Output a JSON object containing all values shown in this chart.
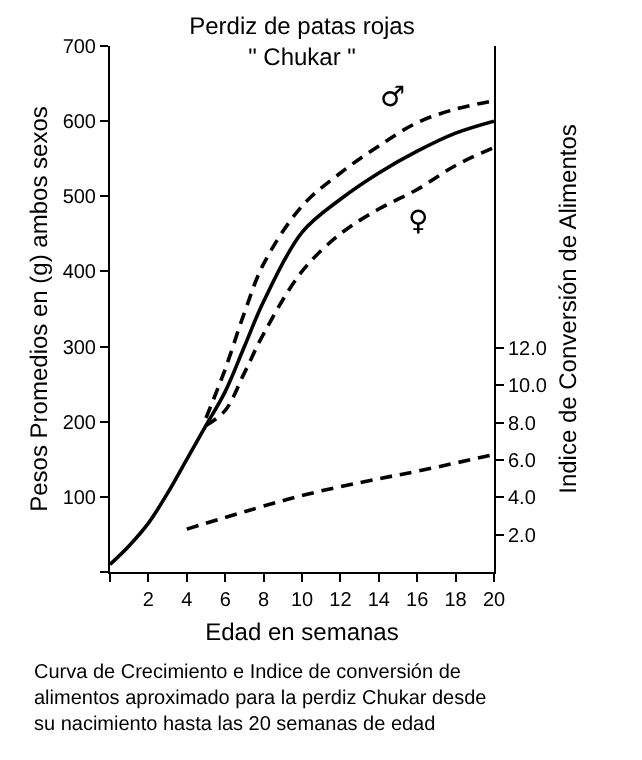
{
  "chart_data": {
    "type": "line",
    "title": "Perdiz de patas rojas\n\" Chukar \"",
    "xlabel": "Edad en semanas",
    "ylabel": "Pesos Promedios en (g) ambos sexos",
    "y2label": "Indice de Conversión de Alimentos",
    "series": [
      {
        "color": "#000000",
        "line_style": "solid",
        "x": [
          0,
          1,
          2,
          3,
          4,
          5,
          6,
          7,
          8,
          10,
          12,
          14,
          16,
          18,
          20
        ],
        "values": [
          10,
          35,
          65,
          105,
          150,
          195,
          240,
          300,
          360,
          452,
          496,
          531,
          560,
          584,
          600
        ]
      },
      {
        "color": "#000000",
        "line_style": "dashed",
        "x": [
          5,
          6,
          7,
          8,
          10,
          12,
          14,
          16,
          18,
          20
        ],
        "values": [
          205,
          270,
          345,
          410,
          487,
          531,
          567,
          598,
          616,
          627
        ]
      },
      {
        "color": "#000000",
        "line_style": "dashed",
        "x": [
          5,
          6,
          7,
          8,
          10,
          12,
          14,
          16,
          18,
          20
        ],
        "values": [
          195,
          215,
          265,
          317,
          400,
          450,
          483,
          509,
          541,
          565
        ]
      },
      {
        "color": "#000000",
        "line_style": "dashed",
        "axis": "y2",
        "x": [
          4,
          10,
          14,
          16,
          20
        ],
        "values": [
          2.3,
          4.1,
          5.0,
          5.4,
          6.3
        ]
      }
    ],
    "xlim": [
      0,
      20
    ],
    "xticks": [
      {
        "value": 0,
        "label": null
      },
      2,
      4,
      6,
      8,
      10,
      12,
      14,
      16,
      18,
      20
    ],
    "ylim": [
      0,
      700
    ],
    "yticks": [
      {
        "value": 0,
        "label": null
      },
      100,
      200,
      300,
      400,
      500,
      600,
      700
    ],
    "y2lim": [
      0,
      28.2
    ],
    "y2ticks": [
      {
        "value": 2,
        "label": "2.0"
      },
      {
        "value": 4,
        "label": "4.0"
      },
      {
        "value": 6,
        "label": "6.0"
      },
      {
        "value": 8,
        "label": "8.0"
      },
      {
        "value": 10,
        "label": "10.0"
      },
      {
        "value": 12,
        "label": "12.0"
      }
    ],
    "annotations": [
      {
        "text": "♂",
        "x": 14.7,
        "y": 594
      },
      {
        "text": "♀",
        "x": 16,
        "y": 509
      },
      "Curva de Crecimiento e Indice de conversión de\nalimentos aproximado para la perdiz Chukar desde\nsu nacimiento hasta las 20 semanas de edad"
    ],
    "marker": "none"
  }
}
